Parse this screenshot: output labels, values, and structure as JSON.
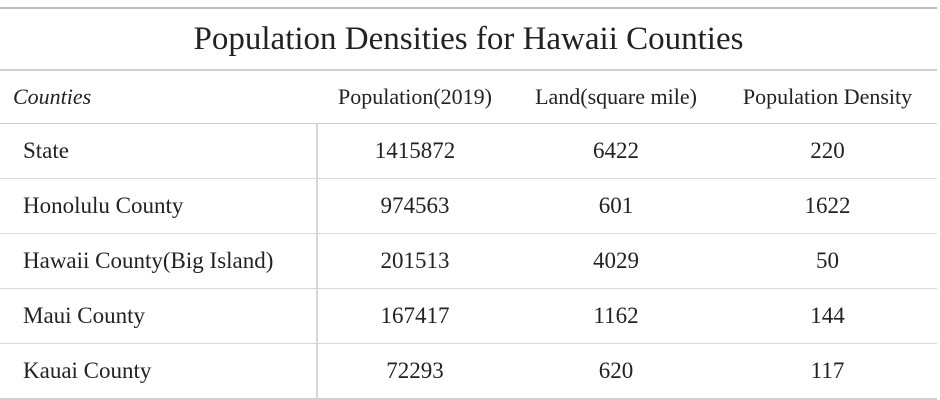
{
  "table": {
    "title": "Population Densities for Hawaii Counties",
    "headers": [
      "Counties",
      "Population(2019)",
      "Land(square mile)",
      "Population Density"
    ],
    "rows": [
      [
        "State",
        "1415872",
        "6422",
        "220"
      ],
      [
        "Honolulu County",
        "974563",
        "601",
        "1622"
      ],
      [
        "Hawaii County(Big Island)",
        "201513",
        "4029",
        "50"
      ],
      [
        "Maui County",
        "167417",
        "1162",
        "144"
      ],
      [
        "Kauai County",
        "72293",
        "620",
        "117"
      ]
    ]
  }
}
